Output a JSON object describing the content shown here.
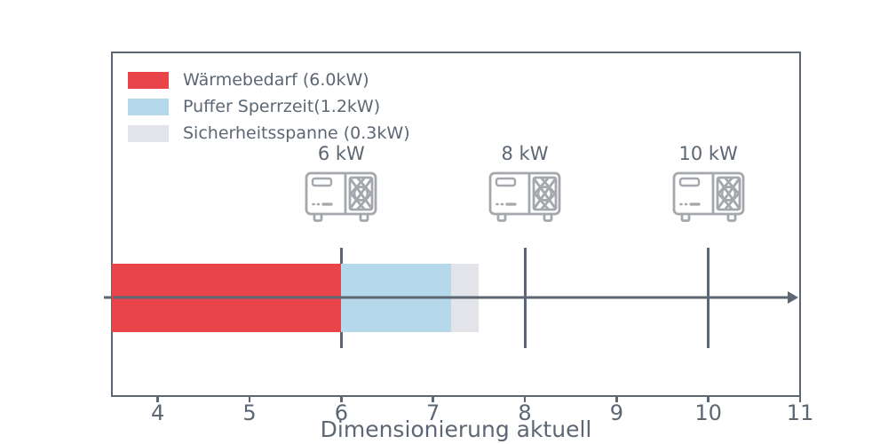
{
  "colors": {
    "slate": "#5d6773",
    "icon_gray": "#a4a8ad",
    "red": "#e94449",
    "light_blue": "#b5d9eb",
    "light_gray": "#e2e4e9",
    "background": "#ffffff"
  },
  "chart_data": {
    "type": "bar",
    "orientation": "horizontal",
    "title": "",
    "xlabel": "Dimensionierung aktuell",
    "ylabel": "",
    "xlim": [
      3.5,
      11
    ],
    "x_ticks": [
      4,
      5,
      6,
      7,
      8,
      9,
      10,
      11
    ],
    "grid": false,
    "legend_position": "upper left inside",
    "segments": [
      {
        "name": "Wärmebedarf",
        "value_kw": 6.0,
        "from": 3.5,
        "to": 6.0,
        "color": "#e94449"
      },
      {
        "name": "Puffer Sperrzeit",
        "value_kw": 1.2,
        "from": 6.0,
        "to": 7.2,
        "color": "#b5d9eb"
      },
      {
        "name": "Sicherheitsspanne",
        "value_kw": 0.3,
        "from": 7.2,
        "to": 7.5,
        "color": "#e2e4e9"
      }
    ],
    "legend": [
      {
        "label": "Wärmebedarf (6.0kW)",
        "color": "#e94449"
      },
      {
        "label": "Puffer Sperrzeit(1.2kW)",
        "color": "#b5d9eb"
      },
      {
        "label": "Sicherheitsspanne (0.3kW)",
        "color": "#e2e4e9"
      }
    ],
    "heat_pumps": [
      {
        "label": "6 kW",
        "value": 6
      },
      {
        "label": "8 kW",
        "value": 8
      },
      {
        "label": "10 kW",
        "value": 10
      }
    ],
    "annotations": {
      "axis_arrow_y_value_note": "horizontal arrow through bar center pointing right"
    }
  }
}
